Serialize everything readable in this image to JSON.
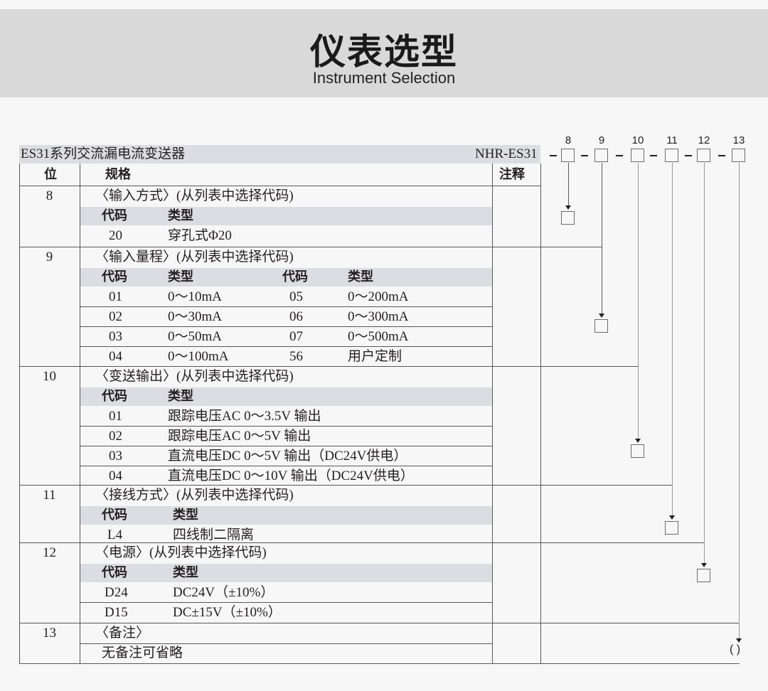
{
  "banner": {
    "title": "仪表选型",
    "subtitle": "Instrument Selection"
  },
  "table": {
    "product_title": "ES31系列交流漏电流变送器",
    "model": "NHR-ES31",
    "col_pos": "位",
    "col_spec": "规格",
    "col_note": "注释",
    "sections": [
      {
        "pos": "8",
        "caption": "〈输入方式〉(从列表中选择代码)",
        "headers": [
          "代码",
          "类型"
        ],
        "rows": [
          [
            "20",
            "穿孔式Φ20"
          ]
        ]
      },
      {
        "pos": "9",
        "caption": "〈输入量程〉(从列表中选择代码)",
        "headers": [
          "代码",
          "类型",
          "代码",
          "类型"
        ],
        "rows": [
          [
            "01",
            "0～10mA",
            "05",
            "0～200mA"
          ],
          [
            "02",
            "0～30mA",
            "06",
            "0～300mA"
          ],
          [
            "03",
            "0～50mA",
            "07",
            "0～500mA"
          ],
          [
            "04",
            "0～100mA",
            "56",
            "用户定制"
          ]
        ]
      },
      {
        "pos": "10",
        "caption": "〈变送输出〉(从列表中选择代码)",
        "headers": [
          "代码",
          "类型"
        ],
        "rows": [
          [
            "01",
            "跟踪电压AC 0～3.5V 输出"
          ],
          [
            "02",
            "跟踪电压AC 0～5V 输出"
          ],
          [
            "03",
            "直流电压DC 0～5V 输出（DC24V供电）"
          ],
          [
            "04",
            "直流电压DC 0～10V 输出（DC24V供电）"
          ]
        ]
      },
      {
        "pos": "11",
        "caption": "〈接线方式〉(从列表中选择代码)",
        "headers": [
          "代码",
          "类型"
        ],
        "rows": [
          [
            "L4",
            "四线制二隔离"
          ]
        ]
      },
      {
        "pos": "12",
        "caption": "〈电源〉(从列表中选择代码)",
        "headers": [
          "代码",
          "类型"
        ],
        "rows": [
          [
            "D24",
            "DC24V（±10%）"
          ],
          [
            "D15",
            "DC±15V（±10%）"
          ]
        ]
      },
      {
        "pos": "13",
        "caption": "〈备注〉",
        "note": "无备注可省略"
      }
    ]
  },
  "diagram": {
    "positions": [
      "8",
      "9",
      "10",
      "11",
      "12",
      "13"
    ],
    "last_placeholder": "( )"
  }
}
